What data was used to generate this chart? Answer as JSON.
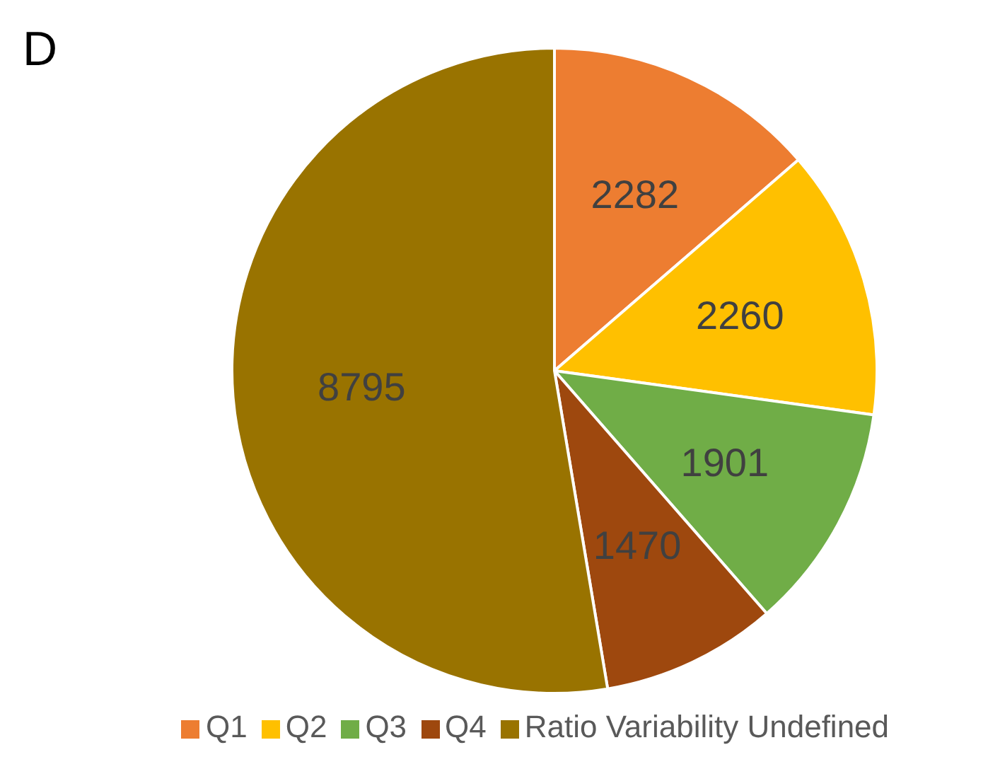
{
  "chart_data": {
    "type": "pie",
    "title": "D",
    "categories": [
      "Q1",
      "Q2",
      "Q3",
      "Q4",
      "Ratio Variability Undefined"
    ],
    "values": [
      2282,
      2260,
      1901,
      1470,
      8795
    ],
    "colors": [
      "#ed7d31",
      "#ffc000",
      "#70ad47",
      "#9e480e",
      "#997300"
    ],
    "data_labels": true,
    "legend": "bottom"
  }
}
